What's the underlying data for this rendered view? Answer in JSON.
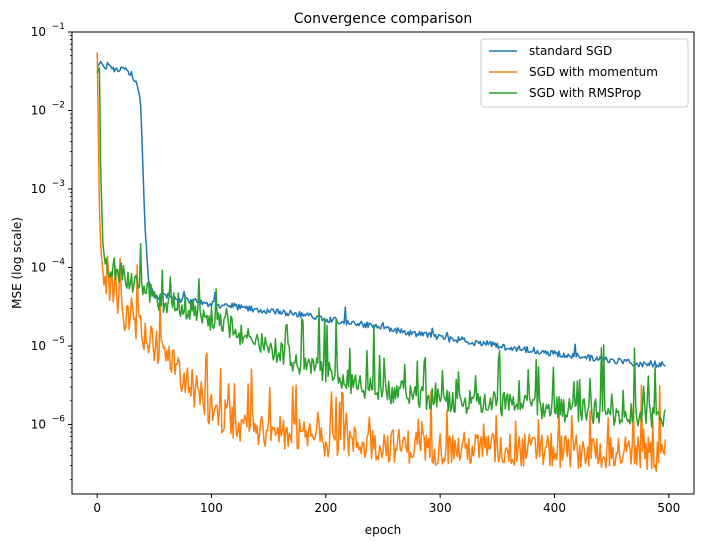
{
  "chart_data": {
    "type": "line",
    "title": "Convergence comparison",
    "xlabel": "epoch",
    "ylabel": "MSE (log scale)",
    "xlim": [
      -22,
      522
    ],
    "xticks": [
      0,
      100,
      200,
      300,
      400,
      500
    ],
    "xtick_labels": [
      "0",
      "100",
      "200",
      "300",
      "400",
      "500"
    ],
    "yscale": "log",
    "ylim": [
      1.3e-07,
      0.1
    ],
    "yticks": [
      1e-06,
      1e-05,
      0.0001,
      0.001,
      0.01,
      0.1
    ],
    "ytick_labels": [
      {
        "base": "10",
        "exp": "−6"
      },
      {
        "base": "10",
        "exp": "−5"
      },
      {
        "base": "10",
        "exp": "−4"
      },
      {
        "base": "10",
        "exp": "−3"
      },
      {
        "base": "10",
        "exp": "−2"
      },
      {
        "base": "10",
        "exp": "−1"
      }
    ],
    "grid": false,
    "legend_position": "top-right",
    "series": [
      {
        "name": "standard SGD",
        "color": "#1f77b4",
        "x": [
          0,
          3,
          6,
          10,
          15,
          20,
          25,
          30,
          35,
          38,
          40,
          42,
          45,
          48,
          50,
          55,
          60,
          70,
          80,
          90,
          100,
          110,
          120,
          130,
          140,
          150,
          160,
          170,
          180,
          190,
          200,
          210,
          220,
          230,
          240,
          250,
          260,
          270,
          280,
          290,
          300,
          310,
          320,
          330,
          340,
          350,
          360,
          370,
          380,
          390,
          400,
          410,
          420,
          430,
          440,
          450,
          460,
          470,
          480,
          490,
          497
        ],
        "y": [
          0.035,
          0.042,
          0.036,
          0.038,
          0.034,
          0.033,
          0.032,
          0.03,
          0.02,
          0.012,
          0.002,
          0.0003,
          7e-05,
          5e-05,
          4e-05,
          4.2e-05,
          4.5e-05,
          4e-05,
          3.8e-05,
          3.6e-05,
          3.4e-05,
          3.3e-05,
          3.2e-05,
          3e-05,
          2.9e-05,
          2.8e-05,
          2.7e-05,
          2.6e-05,
          2.5e-05,
          2.4e-05,
          2.2e-05,
          2.1e-05,
          2e-05,
          1.9e-05,
          1.8e-05,
          1.7e-05,
          1.6e-05,
          1.5e-05,
          1.4e-05,
          1.4e-05,
          1.3e-05,
          1.2e-05,
          1.2e-05,
          1.1e-05,
          1.1e-05,
          1e-05,
          9.5e-06,
          9.2e-06,
          8.8e-06,
          8.4e-06,
          8e-06,
          7.7e-06,
          7.4e-06,
          7.1e-06,
          6.8e-06,
          6.6e-06,
          6.3e-06,
          6e-06,
          5.8e-06,
          5.6e-06,
          6e-06
        ]
      },
      {
        "name": "SGD with momentum",
        "color": "#ff7f0e",
        "x": [
          0,
          2,
          3,
          5,
          6,
          8,
          10,
          15,
          20,
          25,
          30,
          35,
          40,
          45,
          50,
          55,
          60,
          70,
          80,
          90,
          100,
          110,
          120,
          130,
          140,
          150,
          160,
          180,
          200,
          220,
          250,
          300,
          350,
          400,
          450,
          497
        ],
        "y": [
          0.055,
          0.0006,
          0.0002,
          9e-05,
          6e-05,
          7e-05,
          5e-05,
          4e-05,
          3e-05,
          2.5e-05,
          2e-05,
          1.8e-05,
          1.5e-05,
          1.2e-05,
          1e-05,
          9e-06,
          7e-06,
          5e-06,
          3.5e-06,
          2.2e-06,
          1.5e-06,
          1.2e-06,
          1e-06,
          9.5e-07,
          9e-07,
          8.5e-07,
          8e-07,
          7e-07,
          6.5e-07,
          6e-07,
          5.5e-07,
          5e-07,
          4.8e-07,
          4.6e-07,
          4.5e-07,
          4e-07
        ]
      },
      {
        "name": "SGD with RMSProp",
        "color": "#2ca02c",
        "x": [
          0,
          2,
          3,
          5,
          6,
          8,
          10,
          15,
          20,
          25,
          30,
          35,
          40,
          45,
          50,
          60,
          70,
          80,
          90,
          100,
          110,
          120,
          130,
          140,
          150,
          160,
          180,
          200,
          220,
          250,
          300,
          350,
          400,
          450,
          497
        ],
        "y": [
          0.03,
          0.035,
          0.002,
          0.0002,
          0.00015,
          0.00012,
          0.0001,
          0.0001,
          9e-05,
          8e-05,
          7e-05,
          6e-05,
          5e-05,
          4.5e-05,
          4e-05,
          3.7e-05,
          3.4e-05,
          3e-05,
          2.6e-05,
          2.2e-05,
          1.9e-05,
          1.6e-05,
          1.3e-05,
          1.1e-05,
          9.5e-06,
          8.2e-06,
          6e-06,
          4.5e-06,
          3.5e-06,
          2.7e-06,
          2.1e-06,
          1.8e-06,
          1.6e-06,
          1.4e-06,
          1.3e-06
        ]
      }
    ]
  }
}
